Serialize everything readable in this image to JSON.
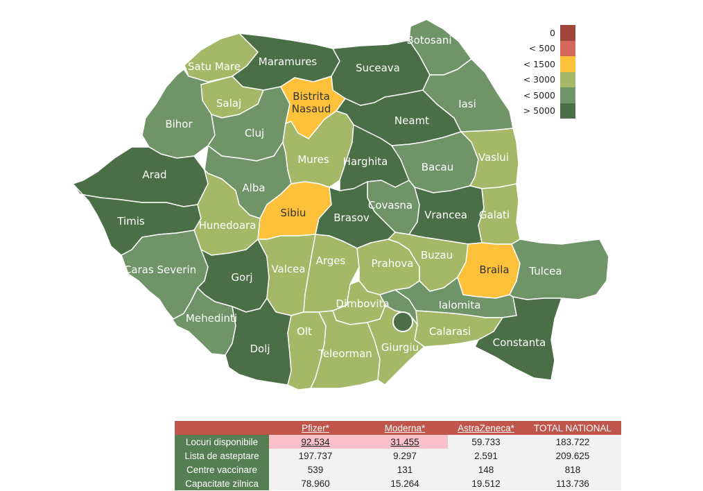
{
  "legend": {
    "items": [
      {
        "label": "0",
        "color": "#a0463a"
      },
      {
        "label": "< 500",
        "color": "#d2675a"
      },
      {
        "label": "< 1500",
        "color": "#fdc03b"
      },
      {
        "label": "< 3000",
        "color": "#a4b867"
      },
      {
        "label": "< 5000",
        "color": "#6f9467"
      },
      {
        "label": "> 5000",
        "color": "#4a6e46"
      }
    ]
  },
  "map": {
    "counties": [
      {
        "id": "satu-mare",
        "name": "Satu Mare",
        "cls": "< 3000"
      },
      {
        "id": "maramures",
        "name": "Maramures",
        "cls": "> 5000"
      },
      {
        "id": "suceava",
        "name": "Suceava",
        "cls": "> 5000"
      },
      {
        "id": "botosani",
        "name": "Botosani",
        "cls": "< 5000"
      },
      {
        "id": "bihor",
        "name": "Bihor",
        "cls": "< 5000"
      },
      {
        "id": "salaj",
        "name": "Salaj",
        "cls": "< 3000"
      },
      {
        "id": "cluj",
        "name": "Cluj",
        "cls": "< 5000"
      },
      {
        "id": "bistrita",
        "name": "Bistrita Nasaud",
        "cls": "< 1500"
      },
      {
        "id": "neamt",
        "name": "Neamt",
        "cls": "> 5000"
      },
      {
        "id": "iasi",
        "name": "Iasi",
        "cls": "< 5000"
      },
      {
        "id": "arad",
        "name": "Arad",
        "cls": "> 5000"
      },
      {
        "id": "alba",
        "name": "Alba",
        "cls": "< 5000"
      },
      {
        "id": "mures",
        "name": "Mures",
        "cls": "< 3000"
      },
      {
        "id": "harghita",
        "name": "Harghita",
        "cls": "> 5000"
      },
      {
        "id": "bacau",
        "name": "Bacau",
        "cls": "< 5000"
      },
      {
        "id": "vaslui",
        "name": "Vaslui",
        "cls": "< 3000"
      },
      {
        "id": "timis",
        "name": "Timis",
        "cls": "> 5000"
      },
      {
        "id": "hunedoara",
        "name": "Hunedoara",
        "cls": "< 3000"
      },
      {
        "id": "sibiu",
        "name": "Sibiu",
        "cls": "< 1500"
      },
      {
        "id": "covasna",
        "name": "Covasna",
        "cls": "< 5000"
      },
      {
        "id": "brasov",
        "name": "Brasov",
        "cls": "> 5000"
      },
      {
        "id": "vrancea",
        "name": "Vrancea",
        "cls": "> 5000"
      },
      {
        "id": "galati",
        "name": "Galati",
        "cls": "< 3000"
      },
      {
        "id": "caras-severin",
        "name": "Caras Severin",
        "cls": "< 5000"
      },
      {
        "id": "gorj",
        "name": "Gorj",
        "cls": "> 5000"
      },
      {
        "id": "valcea",
        "name": "Valcea",
        "cls": "< 3000"
      },
      {
        "id": "arges",
        "name": "Arges",
        "cls": "< 3000"
      },
      {
        "id": "prahova",
        "name": "Prahova",
        "cls": "< 3000"
      },
      {
        "id": "buzau",
        "name": "Buzau",
        "cls": "< 3000"
      },
      {
        "id": "braila",
        "name": "Braila",
        "cls": "< 1500"
      },
      {
        "id": "tulcea",
        "name": "Tulcea",
        "cls": "< 5000"
      },
      {
        "id": "mehedinti",
        "name": "Mehedinti",
        "cls": "< 5000"
      },
      {
        "id": "dolj",
        "name": "Dolj",
        "cls": "> 5000"
      },
      {
        "id": "olt",
        "name": "Olt",
        "cls": "< 3000"
      },
      {
        "id": "dimbovita",
        "name": "Dimbovita",
        "cls": "< 3000"
      },
      {
        "id": "ialomita",
        "name": "Ialomita",
        "cls": "< 5000"
      },
      {
        "id": "calarasi",
        "name": "Calarasi",
        "cls": "< 3000"
      },
      {
        "id": "constanta",
        "name": "Constanta",
        "cls": "> 5000"
      },
      {
        "id": "teleorman",
        "name": "Teleorman",
        "cls": "< 3000"
      },
      {
        "id": "giurgiu",
        "name": "Giurgiu",
        "cls": "< 3000"
      },
      {
        "id": "ilfov",
        "name": "",
        "cls": "< 5000"
      },
      {
        "id": "bucuresti",
        "name": "",
        "cls": "> 5000"
      }
    ]
  },
  "table": {
    "headers": [
      "",
      "Pfizer*",
      "Moderna*",
      "AstraZeneca*",
      "TOTAL NATIONAL"
    ],
    "rows": [
      {
        "label": "Locuri disponibile",
        "values": [
          "92.534",
          "31.455",
          "59.733",
          "183.722"
        ]
      },
      {
        "label": "Lista de asteptare",
        "values": [
          "197.737",
          "9.297",
          "2.591",
          "209.625"
        ]
      },
      {
        "label": "Centre vaccinare",
        "values": [
          "539",
          "131",
          "148",
          "818"
        ]
      },
      {
        "label": "Capacitate zilnica",
        "values": [
          "78.960",
          "15.264",
          "19.512",
          "113.736"
        ]
      }
    ]
  }
}
